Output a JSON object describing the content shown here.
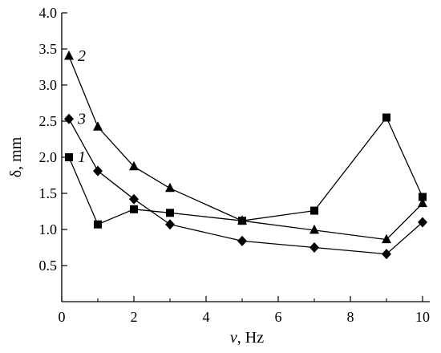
{
  "chart_data": {
    "type": "line",
    "xlabel_symbol": "ν",
    "xlabel_unit": ", Hz",
    "ylabel": "δ, mm",
    "xlim": [
      0,
      10.2
    ],
    "ylim": [
      0,
      4.0
    ],
    "x_ticks": [
      0,
      2,
      4,
      6,
      8,
      10
    ],
    "y_ticks": [
      0.5,
      1.0,
      1.5,
      2.0,
      2.5,
      3.0,
      3.5,
      4.0
    ],
    "y_tick_labels": [
      "0.5",
      "1.0",
      "1.5",
      "2.0",
      "2.5",
      "3.0",
      "3.5",
      "4.0"
    ],
    "x_tick_labels": [
      "0",
      "2",
      "4",
      "6",
      "8",
      "10"
    ],
    "grid": false,
    "series": [
      {
        "name": "1",
        "marker": "square",
        "x": [
          0.2,
          1,
          2,
          3,
          5,
          7,
          9,
          10
        ],
        "y": [
          2.0,
          1.07,
          1.28,
          1.23,
          1.12,
          1.26,
          2.55,
          1.45
        ]
      },
      {
        "name": "2",
        "marker": "triangle",
        "x": [
          0.2,
          1,
          2,
          3,
          5,
          7,
          9,
          10
        ],
        "y": [
          3.4,
          2.42,
          1.87,
          1.57,
          1.12,
          0.99,
          0.86,
          1.36
        ]
      },
      {
        "name": "3",
        "marker": "diamond",
        "x": [
          0.2,
          1,
          2,
          3,
          5,
          7,
          9,
          10
        ],
        "y": [
          2.53,
          1.81,
          1.42,
          1.07,
          0.84,
          0.75,
          0.66,
          1.1
        ]
      }
    ]
  }
}
